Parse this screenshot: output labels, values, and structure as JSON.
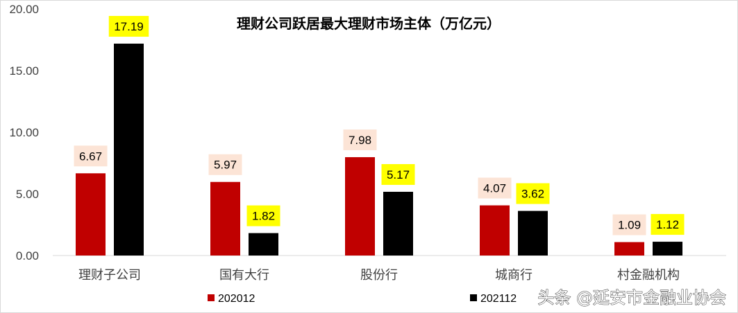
{
  "chart_data": {
    "type": "bar",
    "title": "理财公司跃居最大理财市场主体（万亿元）",
    "categories": [
      "理财子公司",
      "国有大行",
      "股份行",
      "城商行",
      "村金融机构"
    ],
    "series": [
      {
        "name": "202012",
        "color": "#c00000",
        "label_bg": "#fce4d6",
        "values": [
          6.67,
          5.97,
          7.98,
          4.07,
          1.09
        ]
      },
      {
        "name": "202112",
        "color": "#000000",
        "label_bg": "#ffff00",
        "values": [
          17.19,
          1.82,
          5.17,
          3.62,
          1.12
        ]
      }
    ],
    "ylim": [
      0,
      20
    ],
    "yticks": [
      "0.00",
      "5.00",
      "10.00",
      "15.00",
      "20.00"
    ],
    "grid": false,
    "legend": "bottom"
  },
  "watermark": "头条 @延安市金融业协会"
}
